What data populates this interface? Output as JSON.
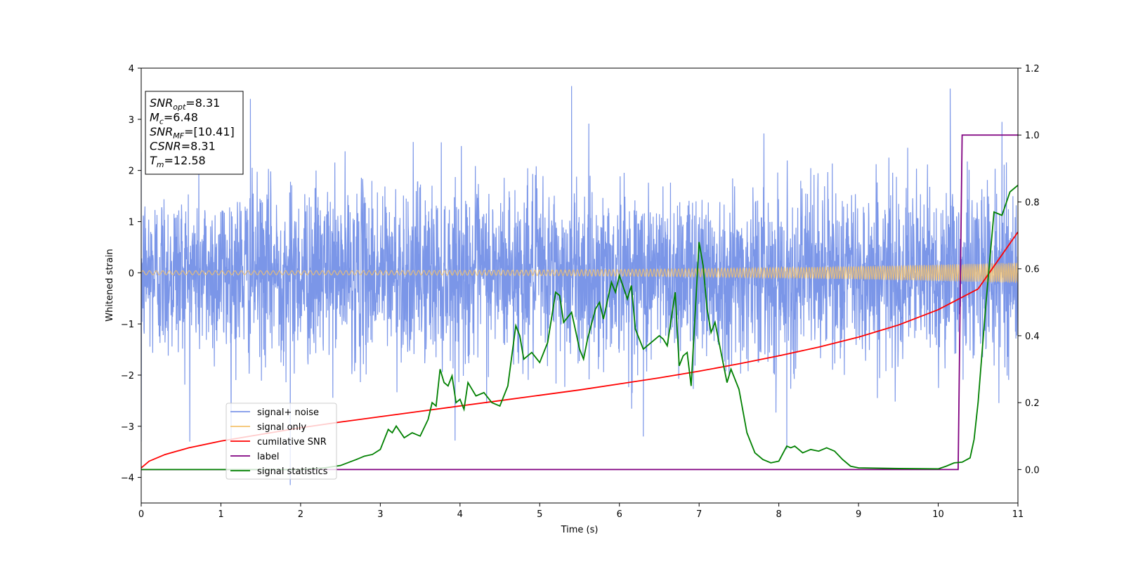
{
  "chart_data": {
    "type": "line",
    "xlabel": "Time (s)",
    "ylabel": "Whitened strain",
    "xlim": [
      0,
      11
    ],
    "ylim": [
      -4.5,
      4
    ],
    "y2lim": [
      -0.1,
      1.2
    ],
    "x_ticks": [
      0,
      1,
      2,
      3,
      4,
      5,
      6,
      7,
      8,
      9,
      10,
      11
    ],
    "y_ticks": [
      4,
      3,
      2,
      1,
      0,
      -1,
      -2,
      -3,
      -4
    ],
    "y2_ticks": [
      "1.2",
      "1.0",
      "0.8",
      "0.6",
      "0.4",
      "0.2",
      "0.0"
    ],
    "legend_position": "lower-left",
    "colors": {
      "signal_noise": "#7b96e8",
      "signal_only": "#f5c26b",
      "cumulative_snr": "#ff0000",
      "label": "#800080",
      "signal_statistics": "#008000"
    },
    "annotation": {
      "lines": [
        {
          "main": "SNR",
          "sub": "opt",
          "value": "=8.31"
        },
        {
          "main": "M",
          "sub": "c",
          "value": "=6.48"
        },
        {
          "main": "SNR",
          "sub": "MF",
          "value": "=[10.41]"
        },
        {
          "main": "CSNR",
          "sub": "",
          "value": "=8.31"
        },
        {
          "main": "T",
          "sub": "m",
          "value": "=12.58"
        }
      ]
    },
    "series": [
      {
        "name": "signal+ noise",
        "axis": "left",
        "description_type": "noise",
        "sigma": 0.85,
        "x_range": [
          0,
          11
        ],
        "peaks": [
          [
            0.0,
            -3.3
          ],
          [
            1.37,
            3.4
          ],
          [
            1.87,
            -4.15
          ],
          [
            5.4,
            3.65
          ],
          [
            6.3,
            -3.2
          ],
          [
            8.1,
            -3.45
          ],
          [
            10.15,
            3.6
          ],
          [
            10.8,
            2.95
          ]
        ]
      },
      {
        "name": "signal only",
        "axis": "left",
        "description_type": "chirp",
        "amplitude_start": 0.04,
        "amplitude_end": 0.2,
        "x_range": [
          0,
          11
        ]
      },
      {
        "name": "cumilative SNR",
        "axis": "right",
        "x": [
          0,
          0.1,
          0.3,
          0.6,
          1.0,
          1.5,
          2.0,
          2.5,
          3.0,
          3.5,
          4.0,
          4.5,
          5.0,
          5.5,
          6.0,
          6.5,
          7.0,
          7.5,
          8.0,
          8.5,
          9.0,
          9.5,
          10.0,
          10.5,
          11.0
        ],
        "values": [
          0.005,
          0.025,
          0.045,
          0.065,
          0.085,
          0.105,
          0.125,
          0.142,
          0.158,
          0.174,
          0.19,
          0.206,
          0.222,
          0.238,
          0.256,
          0.274,
          0.294,
          0.316,
          0.34,
          0.366,
          0.396,
          0.432,
          0.478,
          0.54,
          0.71
        ]
      },
      {
        "name": "label",
        "axis": "right",
        "x": [
          0,
          10.25,
          10.3,
          11
        ],
        "values": [
          0.0,
          0.0,
          1.0,
          1.0
        ]
      },
      {
        "name": "signal statistics",
        "axis": "right",
        "x": [
          0,
          2.0,
          2.3,
          2.5,
          2.7,
          2.8,
          2.9,
          3.0,
          3.1,
          3.15,
          3.2,
          3.3,
          3.4,
          3.5,
          3.6,
          3.65,
          3.7,
          3.75,
          3.8,
          3.85,
          3.9,
          3.95,
          4.0,
          4.05,
          4.1,
          4.2,
          4.3,
          4.4,
          4.5,
          4.6,
          4.7,
          4.75,
          4.8,
          4.9,
          5.0,
          5.1,
          5.2,
          5.25,
          5.3,
          5.4,
          5.5,
          5.55,
          5.6,
          5.7,
          5.75,
          5.8,
          5.9,
          5.95,
          6.0,
          6.1,
          6.15,
          6.2,
          6.3,
          6.4,
          6.5,
          6.55,
          6.6,
          6.7,
          6.75,
          6.8,
          6.85,
          6.9,
          7.0,
          7.05,
          7.1,
          7.15,
          7.2,
          7.3,
          7.35,
          7.4,
          7.5,
          7.6,
          7.7,
          7.8,
          7.9,
          8.0,
          8.1,
          8.15,
          8.2,
          8.3,
          8.4,
          8.5,
          8.6,
          8.7,
          8.8,
          8.9,
          9.0,
          9.5,
          10.0,
          10.1,
          10.2,
          10.3,
          10.4,
          10.45,
          10.5,
          10.6,
          10.7,
          10.8,
          10.9,
          11.0
        ],
        "values": [
          0.0,
          0.0,
          0.005,
          0.012,
          0.03,
          0.04,
          0.045,
          0.06,
          0.12,
          0.11,
          0.13,
          0.095,
          0.11,
          0.1,
          0.15,
          0.2,
          0.19,
          0.3,
          0.26,
          0.25,
          0.28,
          0.2,
          0.21,
          0.18,
          0.26,
          0.22,
          0.23,
          0.2,
          0.19,
          0.25,
          0.43,
          0.4,
          0.33,
          0.35,
          0.32,
          0.38,
          0.53,
          0.52,
          0.44,
          0.47,
          0.36,
          0.33,
          0.39,
          0.48,
          0.5,
          0.45,
          0.56,
          0.53,
          0.58,
          0.51,
          0.55,
          0.42,
          0.36,
          0.38,
          0.4,
          0.39,
          0.37,
          0.53,
          0.31,
          0.34,
          0.35,
          0.25,
          0.68,
          0.61,
          0.48,
          0.41,
          0.44,
          0.32,
          0.26,
          0.3,
          0.24,
          0.11,
          0.05,
          0.03,
          0.02,
          0.025,
          0.07,
          0.065,
          0.07,
          0.05,
          0.06,
          0.055,
          0.065,
          0.055,
          0.03,
          0.01,
          0.005,
          0.003,
          0.002,
          0.01,
          0.02,
          0.022,
          0.035,
          0.09,
          0.2,
          0.5,
          0.77,
          0.76,
          0.83,
          0.85
        ]
      }
    ]
  }
}
